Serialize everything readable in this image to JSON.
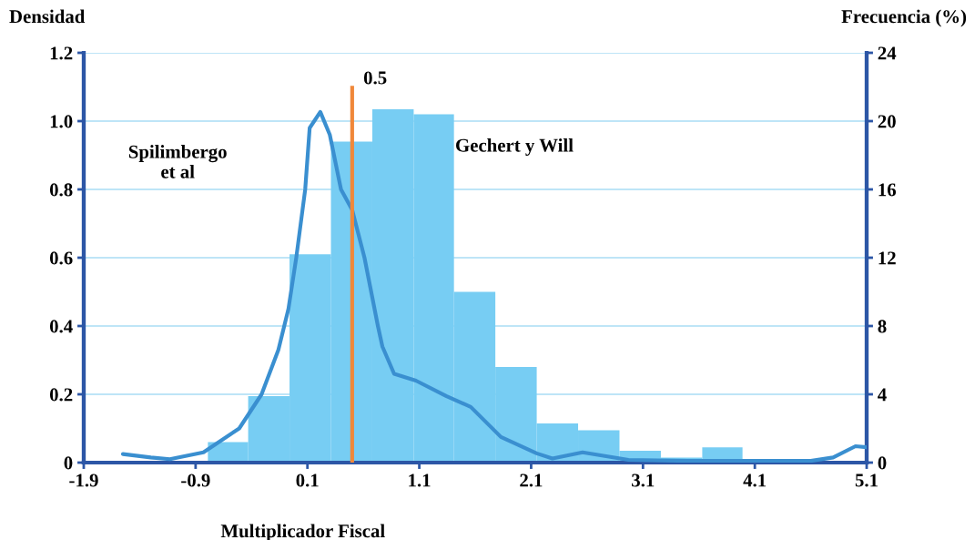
{
  "chart_data": {
    "type": "histogram",
    "xlabel": "Multiplicador Fiscal",
    "ylabel": "Densidad",
    "y2label": "Frecuencia (%)",
    "bins": [
      -0.79,
      -0.43,
      -0.06,
      0.31,
      0.68,
      1.05,
      1.41,
      1.78,
      2.15,
      2.52,
      2.89,
      3.26,
      3.63,
      3.99
    ],
    "series": [
      {
        "axis": "y2",
        "color": "#77cdf3",
        "values": [
          1.2,
          3.9,
          12.2,
          18.8,
          20.7,
          20.4,
          10,
          5.6,
          2.3,
          1.9,
          0.7,
          0.3,
          0.9
        ]
      },
      {
        "type": "line",
        "color": "#3a8fd0",
        "x": [
          -1.55,
          -1.3,
          -1.13,
          -0.83,
          -0.51,
          -0.31,
          -0.16,
          -0.07,
          0.0,
          0.08,
          0.12,
          0.215,
          0.3,
          0.4,
          0.5,
          0.61,
          0.73,
          0.77,
          0.875,
          1.07,
          1.34,
          1.56,
          1.83,
          2.15,
          2.29,
          2.56,
          2.97,
          3.5,
          4.0,
          4.6,
          4.8,
          5.0,
          5.1
        ],
        "values": [
          0.025,
          0.015,
          0.01,
          0.03,
          0.1,
          0.2,
          0.33,
          0.45,
          0.6,
          0.8,
          0.98,
          1.027,
          0.96,
          0.8,
          0.74,
          0.6,
          0.4,
          0.34,
          0.26,
          0.24,
          0.195,
          0.163,
          0.075,
          0.027,
          0.012,
          0.03,
          0.008,
          0.005,
          0.005,
          0.005,
          0.015,
          0.048,
          0.045
        ]
      }
    ],
    "xlim": [
      -1.9,
      5.1
    ],
    "xticks": [
      -1.9,
      -0.9,
      0.1,
      1.1,
      2.1,
      3.1,
      4.1,
      5.1
    ],
    "ylim": [
      0,
      1.2
    ],
    "yticks": [
      {
        "value": 0,
        "label": "0"
      },
      0.2,
      0.4,
      0.6,
      0.8,
      {
        "value": 1.0,
        "label": "1.0"
      },
      1.2
    ],
    "y2lim": [
      0,
      24
    ],
    "y2ticks": [
      0,
      4,
      8,
      12,
      16,
      20,
      24
    ],
    "grid": "y",
    "line_style": "solid",
    "marker": "none",
    "legend": false,
    "ref_lines": [
      {
        "axis": "x",
        "value": 0.5,
        "label": "0.5",
        "color": "#f0883a"
      }
    ],
    "annotations": [
      "Spilimbergo\net al",
      "Gechert y Will"
    ]
  }
}
